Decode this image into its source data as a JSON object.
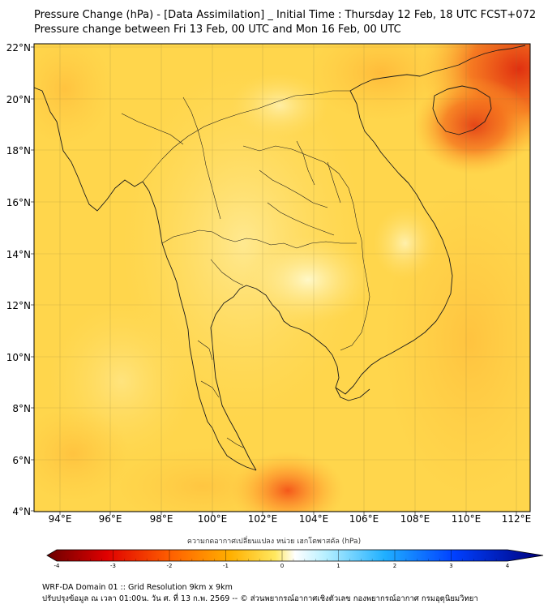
{
  "title": {
    "line1": "Pressure Change (hPa) - [Data Assimilation] _ Initial Time : Thursday 12 Feb, 18 UTC FCST+072",
    "line2": "Pressure change between Fri 13 Feb, 00 UTC and Mon 16 Feb, 00 UTC"
  },
  "axes": {
    "lat_labels": [
      "22°N",
      "20°N",
      "18°N",
      "16°N",
      "14°N",
      "12°N",
      "10°N",
      "8°N",
      "6°N",
      "4°N"
    ],
    "lon_labels": [
      "94°E",
      "96°E",
      "98°E",
      "100°E",
      "102°E",
      "104°E",
      "106°E",
      "108°E",
      "110°E",
      "112°E"
    ]
  },
  "colorbar": {
    "title": "ความกดอากาศเปลี่ยนแปลง หน่วย เฮกโตพาสคัล (hPa)",
    "ticks": [
      "-4",
      "-3",
      "-2",
      "-1",
      "0",
      "1",
      "2",
      "3",
      "4"
    ],
    "range": [
      -4,
      4
    ],
    "colors": [
      "#7a0000",
      "#e60000",
      "#ff6a00",
      "#ffb000",
      "#ffe050",
      "#ffffff",
      "#7fe6ff",
      "#00a0ff",
      "#0030ff",
      "#000080"
    ]
  },
  "footer": {
    "line1": "WRF-DA Domain 01 :: Grid Resolution 9km x 9km",
    "line2": "ปรับปรุงข้อมูล ณ เวลา 01:00น. วัน ศ. ที่ 13 ก.พ. 2569 -- © ส่วนพยากรณ์อากาศเชิงตัวเลข กองพยากรณ์อากาศ กรมอุตุนิยมวิทยา"
  },
  "colors": {
    "field_base": "#ffd54a",
    "field_high": "#e53a1a",
    "field_light": "#fff4a8"
  }
}
